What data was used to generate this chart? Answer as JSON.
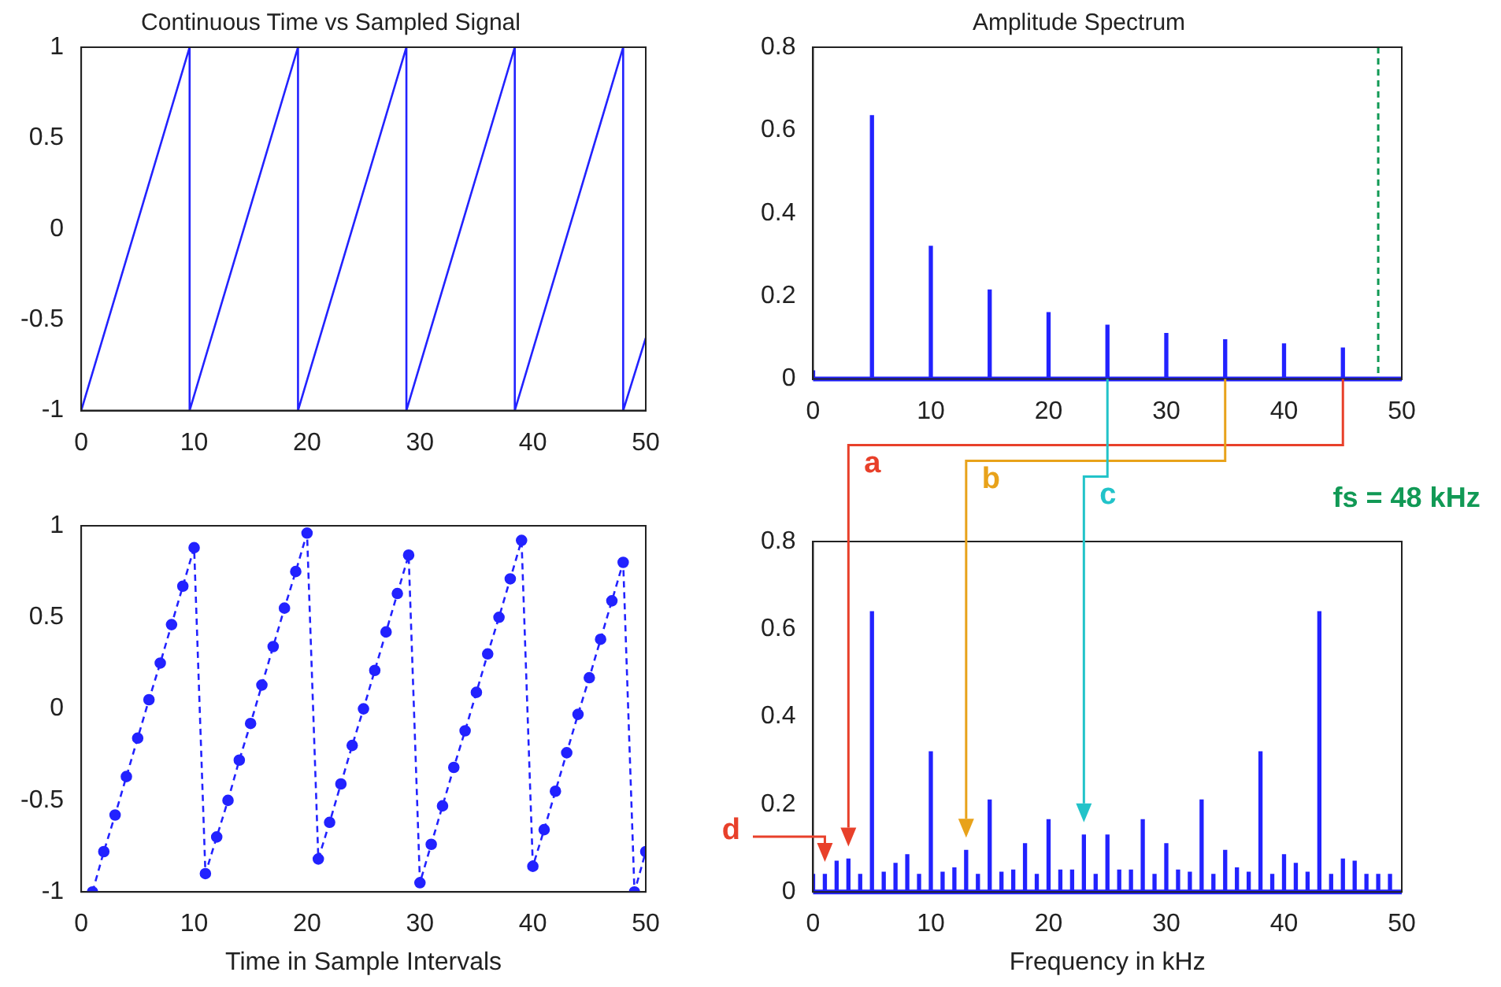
{
  "chart_data": [
    {
      "type": "line",
      "title": "Continuous Time vs Sampled Signal",
      "x": [
        0,
        9.6,
        9.6,
        19.2,
        19.2,
        28.8,
        28.8,
        38.4,
        38.4,
        48,
        48,
        50
      ],
      "values": [
        -1,
        1,
        -1,
        1,
        -1,
        1,
        -1,
        1,
        -1,
        1,
        -1,
        -0.6
      ],
      "color": "#2222ff",
      "xlim": [
        0,
        50
      ],
      "xticks": [
        0,
        10,
        20,
        30,
        40,
        50
      ],
      "ylim": [
        -1,
        1
      ],
      "yticks": [
        -1,
        -0.5,
        0,
        0.5,
        1
      ],
      "marker": "none",
      "line_style": "solid"
    },
    {
      "type": "line",
      "xlabel": "Time in Sample Intervals",
      "x": [
        1,
        2,
        3,
        4,
        5,
        6,
        7,
        8,
        9,
        10,
        11,
        12,
        13,
        14,
        15,
        16,
        17,
        18,
        19,
        20,
        21,
        22,
        23,
        24,
        25,
        26,
        27,
        28,
        29,
        30,
        31,
        32,
        33,
        34,
        35,
        36,
        37,
        38,
        39,
        40,
        41,
        42,
        43,
        44,
        45,
        46,
        47,
        48,
        49,
        50
      ],
      "values": [
        -1,
        -0.78,
        -0.58,
        -0.37,
        -0.16,
        0.05,
        0.25,
        0.46,
        0.67,
        0.88,
        -0.9,
        -0.7,
        -0.5,
        -0.28,
        -0.08,
        0.13,
        0.34,
        0.55,
        0.75,
        0.96,
        -0.82,
        -0.62,
        -0.41,
        -0.2,
        0,
        0.21,
        0.42,
        0.63,
        0.84,
        -0.95,
        -0.74,
        -0.53,
        -0.32,
        -0.12,
        0.09,
        0.3,
        0.5,
        0.71,
        0.92,
        -0.86,
        -0.66,
        -0.45,
        -0.24,
        -0.03,
        0.17,
        0.38,
        0.59,
        0.8,
        -1,
        -0.78
      ],
      "color": "#2222ff",
      "xlim": [
        0,
        50
      ],
      "xticks": [
        0,
        10,
        20,
        30,
        40,
        50
      ],
      "ylim": [
        -1,
        1
      ],
      "yticks": [
        -1,
        -0.5,
        0,
        0.5,
        1
      ],
      "marker": "circle",
      "line_style": "dashed"
    },
    {
      "type": "bar",
      "title": "Amplitude Spectrum",
      "x": [
        0,
        5,
        10,
        15,
        20,
        25,
        30,
        35,
        40,
        45
      ],
      "values": [
        0.02,
        0.635,
        0.32,
        0.215,
        0.16,
        0.13,
        0.11,
        0.095,
        0.085,
        0.075
      ],
      "color": "#2222ff",
      "xlim": [
        0,
        50
      ],
      "xticks": [
        0,
        10,
        20,
        30,
        40,
        50
      ],
      "ylim": [
        0,
        0.8
      ],
      "yticks": [
        0,
        0.2,
        0.4,
        0.6,
        0.8
      ],
      "ref_lines": [
        {
          "axis": "x",
          "value": 48,
          "label": "fs = 48 kHz",
          "color": "#119955",
          "line_style": "dashed"
        }
      ]
    },
    {
      "type": "bar",
      "xlabel": "Frequency in kHz",
      "x": [
        0,
        1,
        2,
        3,
        4,
        5,
        6,
        7,
        8,
        9,
        10,
        11,
        12,
        13,
        14,
        15,
        16,
        17,
        18,
        19,
        20,
        21,
        22,
        23,
        24,
        25,
        26,
        27,
        28,
        29,
        30,
        31,
        32,
        33,
        34,
        35,
        36,
        37,
        38,
        39,
        40,
        41,
        42,
        43,
        44,
        45,
        46,
        47,
        48,
        49
      ],
      "values": [
        0.04,
        0.04,
        0.07,
        0.075,
        0.04,
        0.64,
        0.045,
        0.065,
        0.085,
        0.04,
        0.32,
        0.045,
        0.055,
        0.095,
        0.04,
        0.21,
        0.045,
        0.05,
        0.11,
        0.04,
        0.165,
        0.05,
        0.05,
        0.13,
        0.04,
        0.13,
        0.05,
        0.05,
        0.165,
        0.04,
        0.11,
        0.05,
        0.045,
        0.21,
        0.04,
        0.095,
        0.055,
        0.045,
        0.32,
        0.04,
        0.085,
        0.065,
        0.045,
        0.64,
        0.04,
        0.075,
        0.07,
        0.04,
        0.04,
        0.04
      ],
      "color": "#2222ff",
      "xlim": [
        0,
        50
      ],
      "xticks": [
        0,
        10,
        20,
        30,
        40,
        50
      ],
      "ylim": [
        0,
        0.8
      ],
      "yticks": [
        0,
        0.2,
        0.4,
        0.6,
        0.8
      ],
      "annotations": [
        "a",
        "b",
        "c",
        "d"
      ]
    }
  ]
}
